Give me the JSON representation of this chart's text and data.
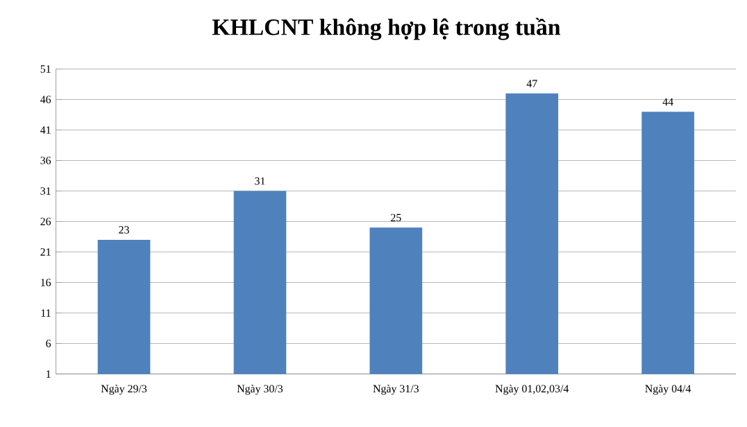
{
  "chart_data": {
    "type": "bar",
    "title": "KHLCNT không hợp lệ trong tuần",
    "categories": [
      "Ngày 29/3",
      "Ngày 30/3",
      "Ngày 31/3",
      "Ngày 01,02,03/4",
      "Ngày 04/4"
    ],
    "values": [
      23,
      31,
      25,
      47,
      44
    ],
    "color": "#4f81bd",
    "ylim": [
      1,
      51
    ],
    "yticks": [
      1,
      6,
      11,
      16,
      21,
      26,
      31,
      36,
      41,
      46,
      51
    ],
    "grid": "y",
    "data_labels": true
  }
}
